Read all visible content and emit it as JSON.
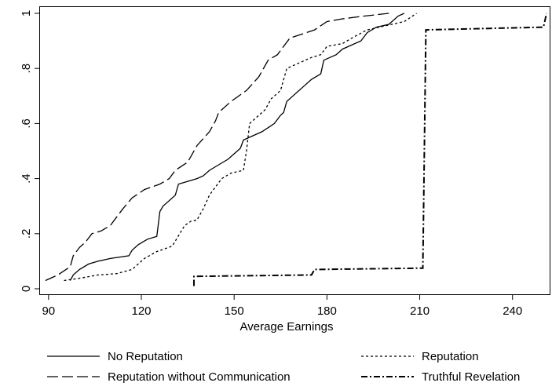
{
  "chart_data": {
    "type": "line",
    "title": "",
    "xlabel": "Average Earnings",
    "ylabel": "",
    "xlim": [
      87,
      252
    ],
    "ylim": [
      0,
      1
    ],
    "xticks": [
      90,
      120,
      150,
      180,
      210,
      240
    ],
    "xtick_labels": [
      "90",
      "120",
      "150",
      "180",
      "210",
      "240"
    ],
    "yticks": [
      0,
      0.2,
      0.4,
      0.6,
      0.8,
      1
    ],
    "ytick_labels": [
      "0",
      ".2",
      ".4",
      ".6",
      ".8",
      "1"
    ],
    "grid": false,
    "legend_position": "bottom",
    "series": [
      {
        "name": "No Reputation",
        "dash": "solid",
        "points": [
          [
            97,
            0.03
          ],
          [
            98,
            0.05
          ],
          [
            100,
            0.07
          ],
          [
            103,
            0.09
          ],
          [
            106,
            0.1
          ],
          [
            110,
            0.11
          ],
          [
            116,
            0.12
          ],
          [
            117,
            0.14
          ],
          [
            119,
            0.16
          ],
          [
            122,
            0.18
          ],
          [
            125,
            0.19
          ],
          [
            126,
            0.28
          ],
          [
            127,
            0.3
          ],
          [
            129,
            0.32
          ],
          [
            131,
            0.34
          ],
          [
            132,
            0.38
          ],
          [
            135,
            0.39
          ],
          [
            138,
            0.4
          ],
          [
            140,
            0.41
          ],
          [
            142,
            0.43
          ],
          [
            145,
            0.45
          ],
          [
            148,
            0.47
          ],
          [
            150,
            0.49
          ],
          [
            152,
            0.51
          ],
          [
            153,
            0.54
          ],
          [
            155,
            0.55
          ],
          [
            159,
            0.57
          ],
          [
            163,
            0.6
          ],
          [
            165,
            0.63
          ],
          [
            166,
            0.64
          ],
          [
            167,
            0.68
          ],
          [
            169,
            0.7
          ],
          [
            172,
            0.73
          ],
          [
            175,
            0.76
          ],
          [
            178,
            0.78
          ],
          [
            179,
            0.83
          ],
          [
            181,
            0.84
          ],
          [
            183,
            0.85
          ],
          [
            185,
            0.87
          ],
          [
            187,
            0.88
          ],
          [
            191,
            0.9
          ],
          [
            193,
            0.93
          ],
          [
            196,
            0.95
          ],
          [
            200,
            0.96
          ],
          [
            203,
            0.99
          ],
          [
            205,
            1.0
          ]
        ]
      },
      {
        "name": "Reputation",
        "dash": "short",
        "points": [
          [
            95,
            0.03
          ],
          [
            101,
            0.04
          ],
          [
            106,
            0.05
          ],
          [
            112,
            0.055
          ],
          [
            117,
            0.07
          ],
          [
            121,
            0.11
          ],
          [
            125,
            0.135
          ],
          [
            130,
            0.155
          ],
          [
            134,
            0.23
          ],
          [
            136,
            0.245
          ],
          [
            138,
            0.25
          ],
          [
            140,
            0.29
          ],
          [
            142,
            0.34
          ],
          [
            146,
            0.4
          ],
          [
            149,
            0.42
          ],
          [
            153,
            0.43
          ],
          [
            154,
            0.5
          ],
          [
            155,
            0.6
          ],
          [
            157,
            0.62
          ],
          [
            160,
            0.65
          ],
          [
            162,
            0.69
          ],
          [
            165,
            0.72
          ],
          [
            167,
            0.8
          ],
          [
            171,
            0.82
          ],
          [
            175,
            0.84
          ],
          [
            178,
            0.85
          ],
          [
            180,
            0.88
          ],
          [
            185,
            0.89
          ],
          [
            188,
            0.91
          ],
          [
            193,
            0.94
          ],
          [
            197,
            0.95
          ],
          [
            201,
            0.96
          ],
          [
            205,
            0.97
          ],
          [
            209,
            1.0
          ]
        ]
      },
      {
        "name": "Reputation without Communication",
        "dash": "long",
        "points": [
          [
            89,
            0.03
          ],
          [
            93,
            0.05
          ],
          [
            97,
            0.08
          ],
          [
            98,
            0.12
          ],
          [
            100,
            0.15
          ],
          [
            102,
            0.17
          ],
          [
            104,
            0.2
          ],
          [
            107,
            0.21
          ],
          [
            110,
            0.23
          ],
          [
            112,
            0.26
          ],
          [
            114,
            0.29
          ],
          [
            117,
            0.33
          ],
          [
            121,
            0.36
          ],
          [
            126,
            0.38
          ],
          [
            129,
            0.4
          ],
          [
            131,
            0.43
          ],
          [
            135,
            0.46
          ],
          [
            138,
            0.52
          ],
          [
            142,
            0.57
          ],
          [
            144,
            0.61
          ],
          [
            145,
            0.64
          ],
          [
            149,
            0.68
          ],
          [
            154,
            0.72
          ],
          [
            158,
            0.77
          ],
          [
            161,
            0.83
          ],
          [
            164,
            0.85
          ],
          [
            168,
            0.91
          ],
          [
            176,
            0.94
          ],
          [
            180,
            0.97
          ],
          [
            185,
            0.98
          ],
          [
            192,
            0.99
          ],
          [
            200,
            1.0
          ]
        ]
      },
      {
        "name": "Truthful Revelation",
        "dash": "dashdot",
        "points": [
          [
            137,
            0.01
          ],
          [
            137,
            0.045
          ],
          [
            175,
            0.05
          ],
          [
            176,
            0.07
          ],
          [
            211,
            0.075
          ],
          [
            212,
            0.94
          ],
          [
            250,
            0.95
          ],
          [
            251,
            1.0
          ]
        ]
      }
    ]
  }
}
